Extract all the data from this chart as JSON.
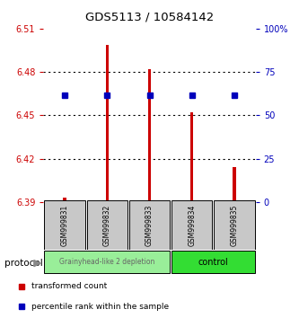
{
  "title": "GDS5113 / 10584142",
  "samples": [
    "GSM999831",
    "GSM999832",
    "GSM999833",
    "GSM999834",
    "GSM999835"
  ],
  "red_values": [
    6.393,
    6.499,
    6.482,
    6.452,
    6.414
  ],
  "blue_values": [
    6.464,
    6.464,
    6.464,
    6.464,
    6.464
  ],
  "ylim": [
    6.39,
    6.51
  ],
  "yticks": [
    6.39,
    6.42,
    6.45,
    6.48,
    6.51
  ],
  "ytick_labels": [
    "6.39",
    "6.42",
    "6.45",
    "6.48",
    "6.51"
  ],
  "y2ticks_pct": [
    0,
    25,
    50,
    75,
    100
  ],
  "y2tick_labels": [
    "0",
    "25",
    "50",
    "75",
    "100%"
  ],
  "bar_base": 6.39,
  "groups": [
    {
      "label": "Grainyhead-like 2 depletion",
      "color": "#99EE99",
      "samples": [
        0,
        1,
        2
      ]
    },
    {
      "label": "control",
      "color": "#33DD33",
      "samples": [
        3,
        4
      ]
    }
  ],
  "protocol_label": "protocol",
  "legend_red": "transformed count",
  "legend_blue": "percentile rank within the sample",
  "red_color": "#CC0000",
  "blue_color": "#0000BB",
  "xlabel_color": "#CC0000",
  "y2label_color": "#0000BB",
  "gray_label_bg": "#C8C8C8",
  "bar_width": 0.07
}
